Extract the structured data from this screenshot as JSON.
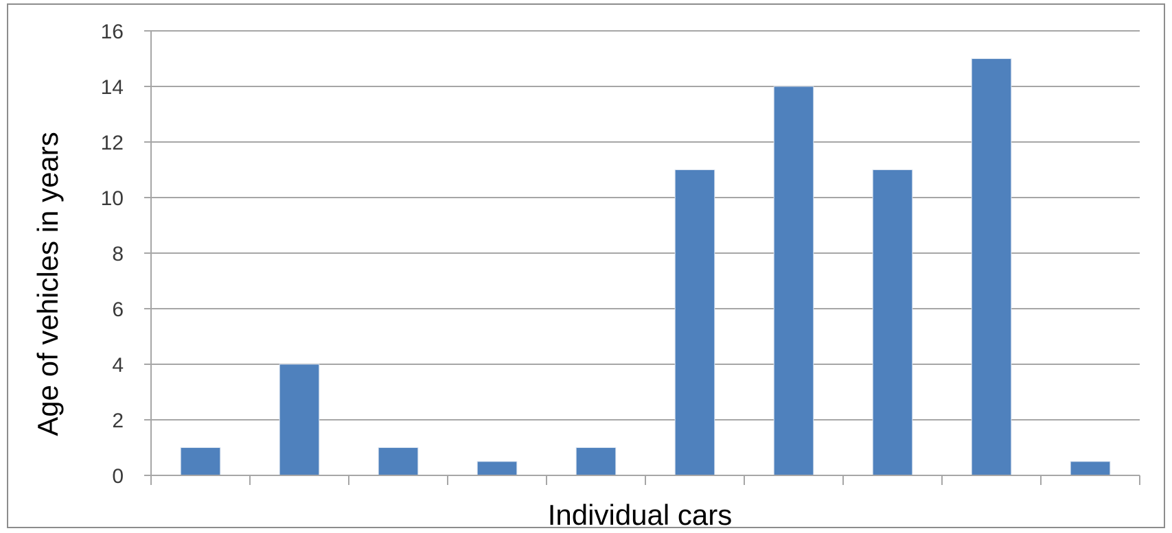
{
  "chart_data": {
    "type": "bar",
    "title": "",
    "xlabel": "Individual cars",
    "ylabel": "Age of vehicles in years",
    "ylim": [
      0,
      16
    ],
    "yticks": [
      "0",
      "2",
      "4",
      "6",
      "8",
      "10",
      "12",
      "14",
      "16"
    ],
    "grid": true,
    "categories": [
      "",
      "",
      "",
      "",
      "",
      "",
      "",
      "",
      "",
      ""
    ],
    "values": [
      1,
      4,
      1,
      0.5,
      1,
      11,
      14,
      11,
      15,
      0.5
    ],
    "bar_color": "#4f81bd",
    "grid_color": "#a6a6a6"
  }
}
